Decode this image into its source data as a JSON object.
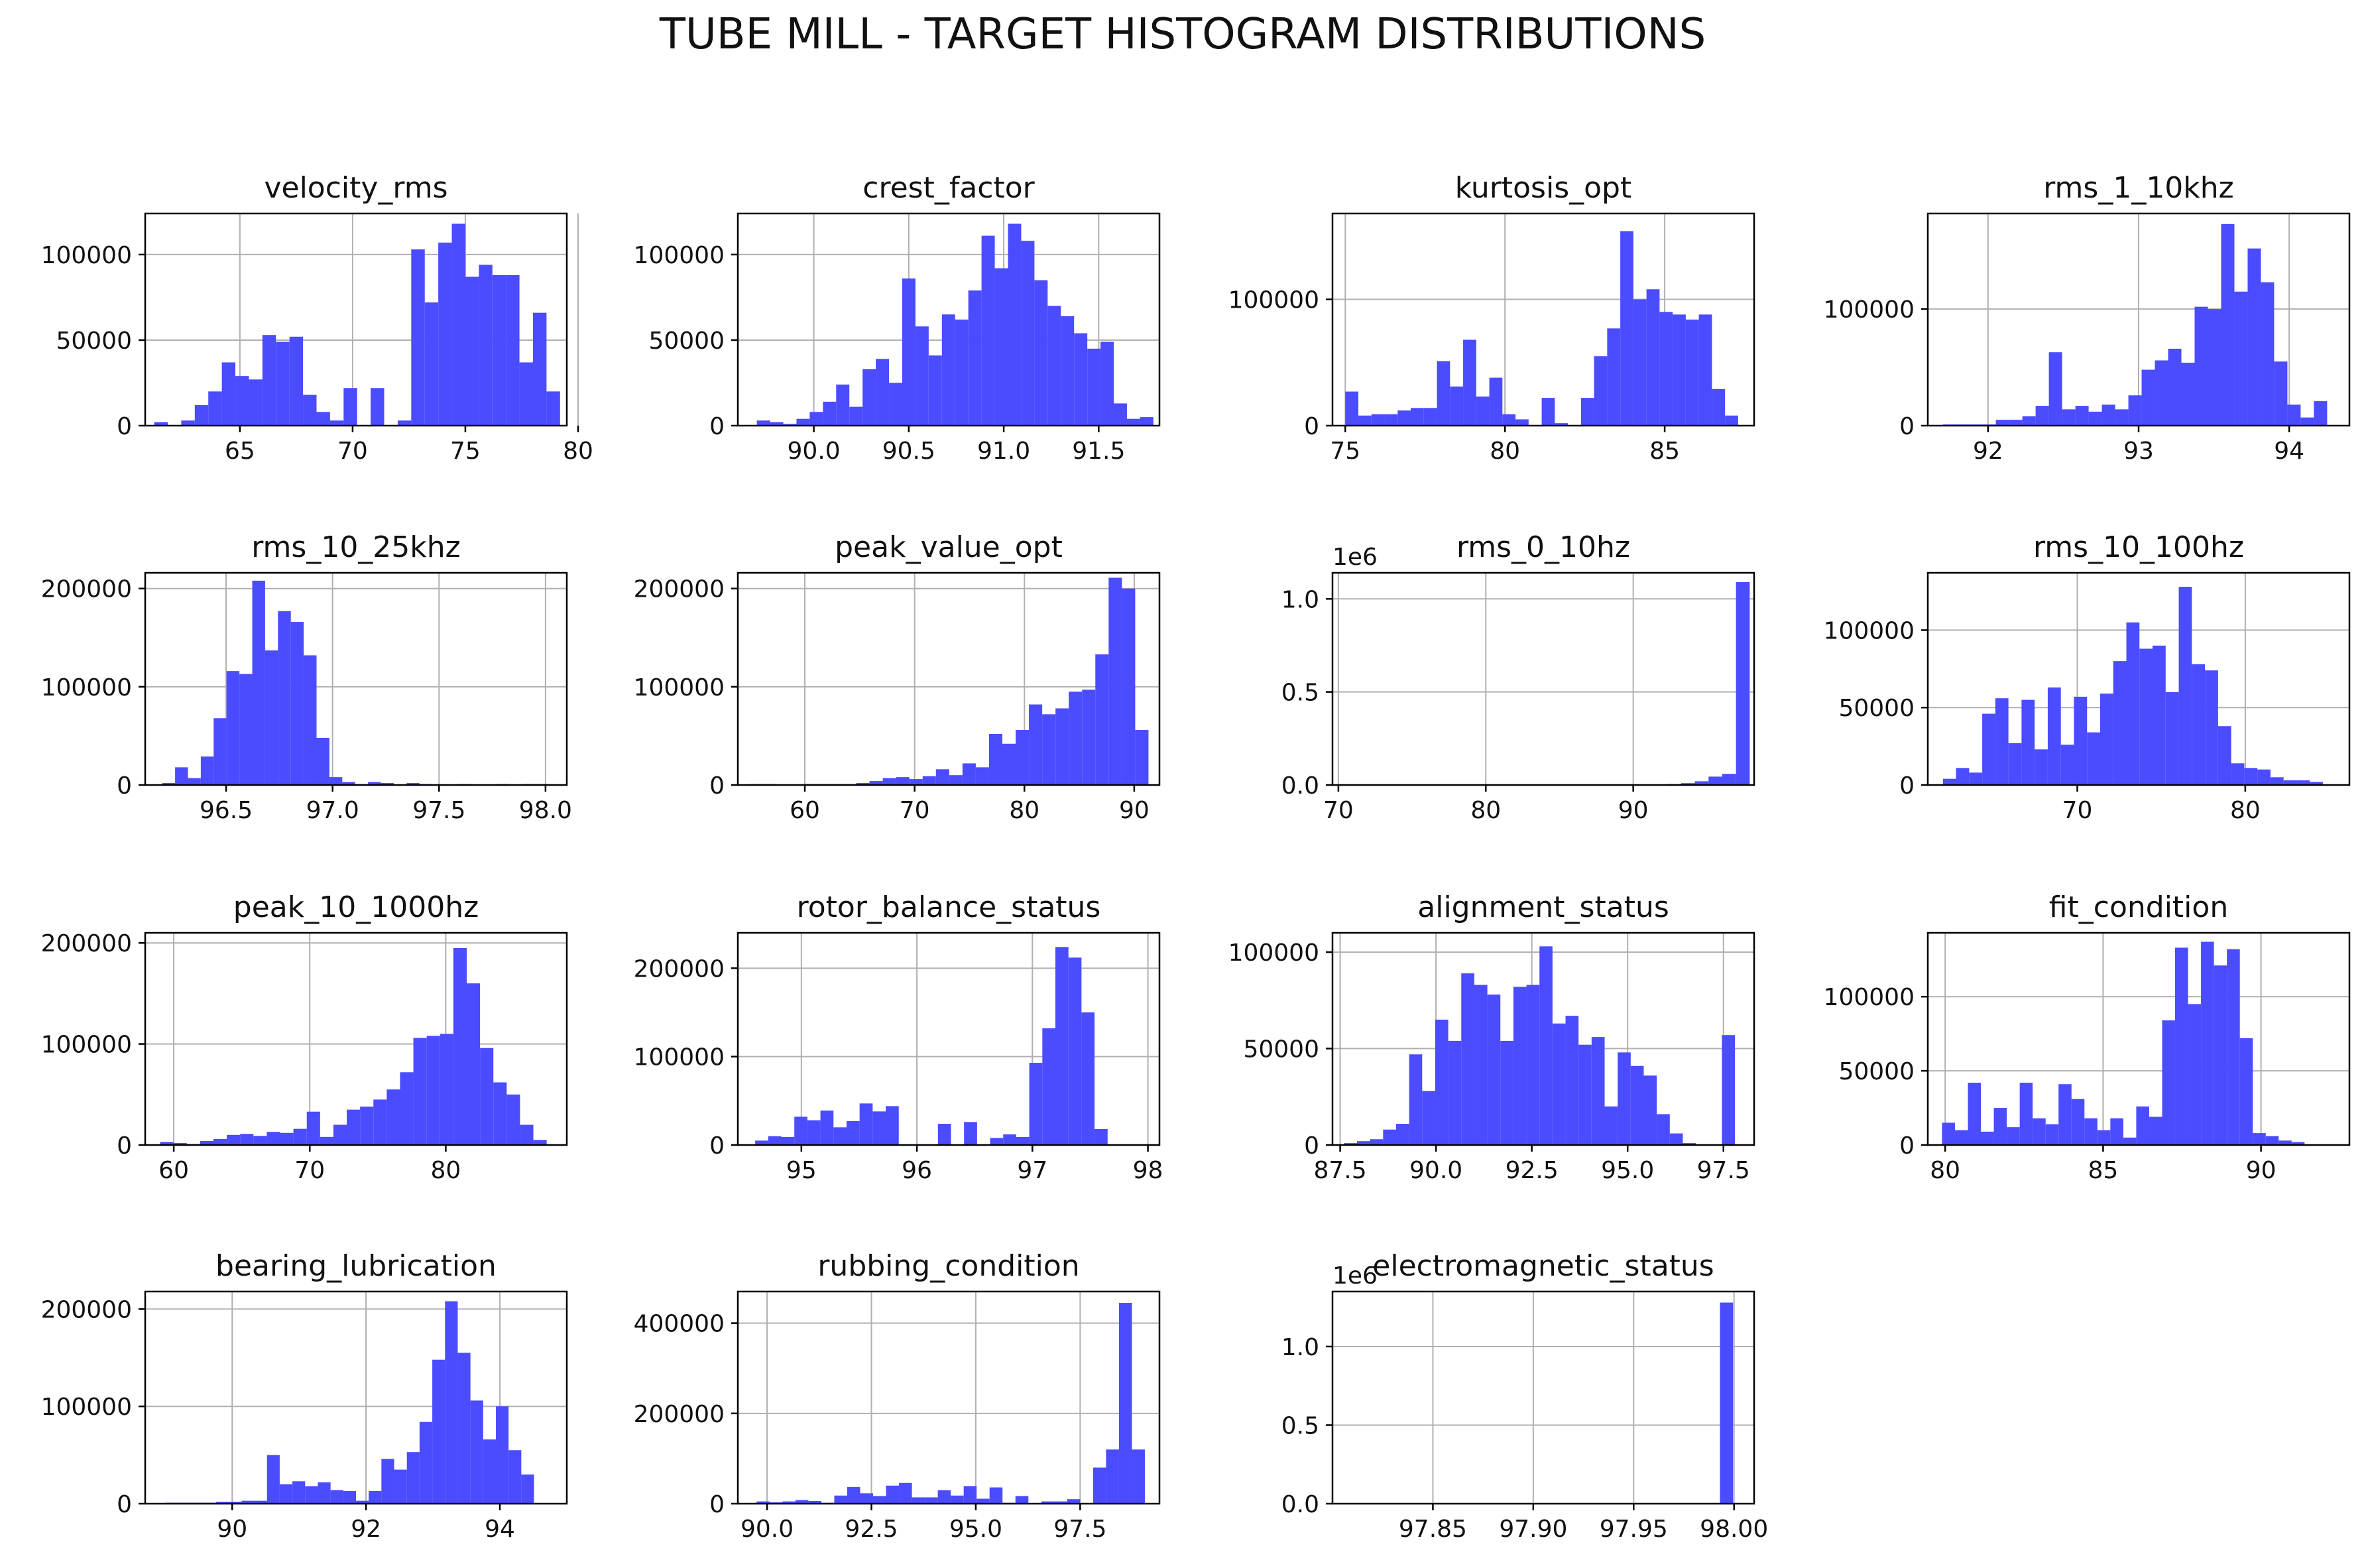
{
  "figure": {
    "title": "TUBE MILL - TARGET HISTOGRAM DISTRIBUTIONS"
  },
  "colors": {
    "bar": "#4b4bff",
    "grid": "#b0b0b0",
    "axis": "#000000",
    "text": "#111111"
  },
  "chart_data": [
    {
      "type": "bar",
      "title": "velocity_rms",
      "xlim": [
        60.8,
        79.5
      ],
      "ylim": [
        0,
        124000
      ],
      "xticks": [
        65,
        70,
        75,
        80
      ],
      "xtick_labels": [
        "65",
        "70",
        "75",
        "80"
      ],
      "yticks": [
        0,
        50000,
        100000
      ],
      "ytick_labels": [
        "0",
        "50000",
        "100000"
      ],
      "bin_start": 61.2,
      "bin_width": 0.6,
      "counts": [
        2000,
        0,
        3000,
        12000,
        20000,
        37000,
        29000,
        27000,
        53000,
        49000,
        52000,
        18000,
        8000,
        3000,
        22000,
        0,
        22000,
        0,
        3000,
        103000,
        72000,
        107000,
        118000,
        87000,
        94000,
        88000,
        88000,
        37000,
        66000,
        20000
      ]
    },
    {
      "type": "bar",
      "title": "crest_factor",
      "xlim": [
        89.6,
        91.82
      ],
      "ylim": [
        0,
        124000
      ],
      "xticks": [
        90.0,
        90.5,
        91.0,
        91.5
      ],
      "xtick_labels": [
        "90.0",
        "90.5",
        "91.0",
        "91.5"
      ],
      "yticks": [
        0,
        50000,
        100000
      ],
      "ytick_labels": [
        "0",
        "50000",
        "100000"
      ],
      "bin_start": 89.7,
      "bin_width": 0.0696,
      "counts": [
        3000,
        2000,
        1000,
        4000,
        8000,
        14000,
        24000,
        11000,
        33000,
        39000,
        25000,
        86000,
        58000,
        41000,
        65000,
        62000,
        79000,
        111000,
        92000,
        118000,
        108000,
        85000,
        70000,
        64000,
        54000,
        45000,
        49000,
        13000,
        4000,
        5000
      ]
    },
    {
      "type": "bar",
      "title": "kurtosis_opt",
      "xlim": [
        74.6,
        87.8
      ],
      "ylim": [
        0,
        168000
      ],
      "xticks": [
        75,
        80,
        85
      ],
      "xtick_labels": [
        "75",
        "80",
        "85"
      ],
      "yticks": [
        0,
        100000
      ],
      "ytick_labels": [
        "0",
        "100000"
      ],
      "bin_start": 75.0,
      "bin_width": 0.41,
      "counts": [
        27000,
        8000,
        9000,
        9000,
        12000,
        14000,
        14000,
        51000,
        31000,
        68000,
        23000,
        38000,
        9000,
        5000,
        0,
        22000,
        2000,
        0,
        22000,
        55000,
        77000,
        154000,
        100000,
        108000,
        90000,
        88000,
        84000,
        88000,
        29000,
        8000
      ]
    },
    {
      "type": "bar",
      "title": "rms_1_10khz",
      "xlim": [
        91.6,
        94.4
      ],
      "ylim": [
        0,
        182000
      ],
      "xticks": [
        92,
        93,
        94
      ],
      "xtick_labels": [
        "92",
        "93",
        "94"
      ],
      "yticks": [
        0,
        100000
      ],
      "ytick_labels": [
        "0",
        "100000"
      ],
      "bin_start": 91.7,
      "bin_width": 0.088,
      "counts": [
        1000,
        1000,
        1000,
        1000,
        5000,
        5000,
        8000,
        17000,
        63000,
        14000,
        17000,
        12000,
        18000,
        14000,
        26000,
        48000,
        56000,
        66000,
        54000,
        102000,
        100000,
        173000,
        115000,
        152000,
        123000,
        55000,
        18000,
        7000,
        21000,
        0
      ]
    },
    {
      "type": "bar",
      "title": "rms_10_25khz",
      "xlim": [
        96.12,
        98.1
      ],
      "ylim": [
        0,
        216000
      ],
      "xticks": [
        96.5,
        97.0,
        97.5,
        98.0
      ],
      "xtick_labels": [
        "96.5",
        "97.0",
        "97.5",
        "98.0"
      ],
      "yticks": [
        0,
        100000,
        200000
      ],
      "ytick_labels": [
        "0",
        "100000",
        "200000"
      ],
      "bin_start": 96.2,
      "bin_width": 0.0604,
      "counts": [
        2000,
        18000,
        7000,
        29000,
        68000,
        116000,
        113000,
        208000,
        137000,
        177000,
        166000,
        132000,
        48000,
        8000,
        3000,
        1000,
        3000,
        2000,
        0,
        2000,
        1000,
        0,
        0,
        1000,
        0,
        0,
        1000,
        0,
        1000,
        1000
      ]
    },
    {
      "type": "bar",
      "title": "peak_value_opt",
      "xlim": [
        53.9,
        92.3
      ],
      "ylim": [
        0,
        216000
      ],
      "xticks": [
        60,
        70,
        80,
        90
      ],
      "xtick_labels": [
        "60",
        "70",
        "80",
        "90"
      ],
      "yticks": [
        0,
        100000,
        200000
      ],
      "ytick_labels": [
        "0",
        "100000",
        "200000"
      ],
      "bin_start": 55.0,
      "bin_width": 1.21,
      "counts": [
        1000,
        1000,
        0,
        0,
        1000,
        1000,
        1000,
        1000,
        2000,
        4000,
        7000,
        8000,
        6000,
        9000,
        16000,
        10000,
        22000,
        18000,
        52000,
        42000,
        56000,
        82000,
        72000,
        78000,
        95000,
        97000,
        133000,
        211000,
        200000,
        56000
      ]
    },
    {
      "type": "bar",
      "title": "rms_0_10hz",
      "xlim": [
        69.6,
        98.2
      ],
      "ylim": [
        0,
        1140000
      ],
      "scale_label": "1e6",
      "xticks": [
        70,
        80,
        90
      ],
      "xtick_labels": [
        "70",
        "80",
        "90"
      ],
      "yticks": [
        0,
        500000,
        1000000
      ],
      "ytick_labels": [
        "0.0",
        "0.5",
        "1.0"
      ],
      "bin_start": 70.0,
      "bin_width": 0.93,
      "counts": [
        0,
        0,
        0,
        0,
        0,
        0,
        0,
        0,
        0,
        0,
        0,
        0,
        0,
        0,
        0,
        0,
        0,
        0,
        0,
        0,
        0,
        0,
        1000,
        2000,
        5000,
        10000,
        20000,
        45000,
        60000,
        1090000
      ]
    },
    {
      "type": "bar",
      "title": "rms_10_100hz",
      "xlim": [
        61.1,
        86.2
      ],
      "ylim": [
        0,
        137000
      ],
      "xticks": [
        70,
        80
      ],
      "xtick_labels": [
        "70",
        "80"
      ],
      "yticks": [
        0,
        50000,
        100000
      ],
      "ytick_labels": [
        "0",
        "50000",
        "100000"
      ],
      "bin_start": 62.0,
      "bin_width": 0.78,
      "counts": [
        4000,
        11000,
        8000,
        46000,
        56000,
        27000,
        55000,
        23000,
        63000,
        26000,
        57000,
        34000,
        59000,
        80000,
        105000,
        88000,
        90000,
        60000,
        128000,
        78000,
        74000,
        38000,
        14000,
        11000,
        10000,
        5000,
        3000,
        3000,
        2000,
        0
      ]
    },
    {
      "type": "bar",
      "title": "peak_10_1000hz",
      "xlim": [
        57.9,
        88.9
      ],
      "ylim": [
        0,
        210000
      ],
      "xticks": [
        60,
        70,
        80
      ],
      "xtick_labels": [
        "60",
        "70",
        "80"
      ],
      "yticks": [
        0,
        100000,
        200000
      ],
      "ytick_labels": [
        "0",
        "100000",
        "200000"
      ],
      "bin_start": 59.0,
      "bin_width": 0.98,
      "counts": [
        3000,
        2000,
        1000,
        4000,
        6000,
        10000,
        11000,
        9000,
        13000,
        12000,
        16000,
        33000,
        8000,
        20000,
        35000,
        38000,
        45000,
        55000,
        72000,
        106000,
        108000,
        110000,
        195000,
        160000,
        96000,
        62000,
        50000,
        20000,
        5000,
        0
      ]
    },
    {
      "type": "bar",
      "title": "rotor_balance_status",
      "xlim": [
        94.45,
        98.1
      ],
      "ylim": [
        0,
        240000
      ],
      "xticks": [
        95,
        96,
        97,
        98
      ],
      "xtick_labels": [
        "95",
        "96",
        "97",
        "98"
      ],
      "yticks": [
        0,
        100000,
        200000
      ],
      "ytick_labels": [
        "0",
        "100000",
        "200000"
      ],
      "bin_start": 94.6,
      "bin_width": 0.113,
      "counts": [
        5000,
        10000,
        9000,
        32000,
        28000,
        39000,
        20000,
        27000,
        47000,
        38000,
        44000,
        0,
        0,
        0,
        24000,
        0,
        26000,
        0,
        8000,
        12000,
        9000,
        93000,
        132000,
        224000,
        212000,
        150000,
        18000,
        0,
        0,
        0
      ]
    },
    {
      "type": "bar",
      "title": "alignment_status",
      "xlim": [
        87.3,
        98.3
      ],
      "ylim": [
        0,
        110000
      ],
      "xticks": [
        87.5,
        90.0,
        92.5,
        95.0,
        97.5
      ],
      "xtick_labels": [
        "87.5",
        "90.0",
        "92.5",
        "95.0",
        "97.5"
      ],
      "yticks": [
        0,
        50000,
        100000
      ],
      "ytick_labels": [
        "0",
        "50000",
        "100000"
      ],
      "bin_start": 87.6,
      "bin_width": 0.34,
      "counts": [
        1000,
        2000,
        3000,
        8000,
        11000,
        47000,
        28000,
        65000,
        54000,
        89000,
        83000,
        78000,
        54000,
        82000,
        83000,
        103000,
        63000,
        67000,
        52000,
        56000,
        20000,
        48000,
        41000,
        36000,
        16000,
        6000,
        1000,
        0,
        0,
        57000
      ]
    },
    {
      "type": "bar",
      "title": "fit_condition",
      "xlim": [
        79.45,
        92.8
      ],
      "ylim": [
        0,
        143000
      ],
      "xticks": [
        80,
        85,
        90
      ],
      "xtick_labels": [
        "80",
        "85",
        "90"
      ],
      "yticks": [
        0,
        50000,
        100000
      ],
      "ytick_labels": [
        "0",
        "50000",
        "100000"
      ],
      "bin_start": 79.9,
      "bin_width": 0.41,
      "counts": [
        15000,
        10000,
        42000,
        9000,
        25000,
        12000,
        42000,
        18000,
        14000,
        41000,
        31000,
        18000,
        10000,
        18000,
        5000,
        26000,
        19000,
        84000,
        133000,
        95000,
        137000,
        121000,
        132000,
        72000,
        8000,
        6000,
        3000,
        2000,
        0,
        0
      ]
    },
    {
      "type": "bar",
      "title": "bearing_lubrication",
      "xlim": [
        88.7,
        95.0
      ],
      "ylim": [
        0,
        218000
      ],
      "xticks": [
        90,
        92,
        94
      ],
      "xtick_labels": [
        "90",
        "92",
        "94"
      ],
      "yticks": [
        0,
        100000,
        200000
      ],
      "ytick_labels": [
        "0",
        "100000",
        "200000"
      ],
      "bin_start": 89.0,
      "bin_width": 0.19,
      "counts": [
        1000,
        1000,
        1000,
        1000,
        2000,
        2000,
        3000,
        3000,
        50000,
        20000,
        23000,
        18000,
        22000,
        14000,
        13000,
        3000,
        13000,
        46000,
        35000,
        53000,
        84000,
        148000,
        208000,
        155000,
        106000,
        66000,
        100000,
        55000,
        30000,
        0
      ]
    },
    {
      "type": "bar",
      "title": "rubbing_condition",
      "xlim": [
        89.3,
        99.4
      ],
      "ylim": [
        0,
        470000
      ],
      "xticks": [
        90.0,
        92.5,
        95.0,
        97.5
      ],
      "xtick_labels": [
        "90.0",
        "92.5",
        "95.0",
        "97.5"
      ],
      "yticks": [
        0,
        200000,
        400000
      ],
      "ytick_labels": [
        "0",
        "200000",
        "400000"
      ],
      "bin_start": 89.75,
      "bin_width": 0.31,
      "counts": [
        5000,
        3000,
        5000,
        8000,
        6000,
        2000,
        18000,
        37000,
        23000,
        17000,
        40000,
        46000,
        14000,
        14000,
        30000,
        18000,
        39000,
        11000,
        36000,
        2000,
        17000,
        0,
        5000,
        5000,
        10000,
        0,
        80000,
        120000,
        445000,
        120000
      ]
    },
    {
      "type": "bar",
      "title": "electromagnetic_status",
      "xlim": [
        97.8,
        98.01
      ],
      "ylim": [
        0,
        1350000
      ],
      "scale_label": "1e6",
      "xticks": [
        97.85,
        97.9,
        97.95,
        98.0
      ],
      "xtick_labels": [
        "97.85",
        "97.90",
        "97.95",
        "98.00"
      ],
      "yticks": [
        0,
        500000,
        1000000
      ],
      "ytick_labels": [
        "0.0",
        "0.5",
        "1.0"
      ],
      "bin_start": 97.993,
      "bin_width": 0.0065,
      "counts": [
        1280000
      ]
    }
  ]
}
